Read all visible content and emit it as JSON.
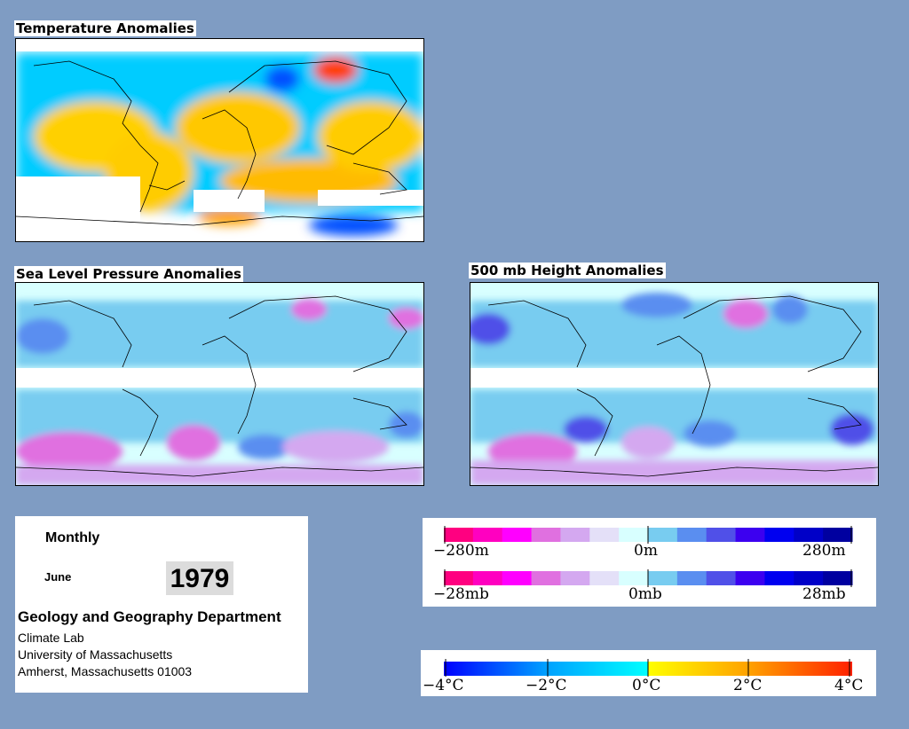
{
  "panels": {
    "temperature_title": "Temperature Anomalies",
    "slp_title": "Sea Level Pressure Anomalies",
    "height_title": "500 mb Height Anomalies"
  },
  "info": {
    "frequency": "Monthly",
    "month": "June",
    "year": "1979",
    "department": "Geology and Geography Department",
    "lab": "Climate Lab",
    "university": "University of Massachusetts",
    "address": "Amherst, Massachusetts 01003"
  },
  "legends": {
    "height": {
      "min": "−280m",
      "mid": "0m",
      "max": "280m"
    },
    "pressure": {
      "min": "−28mb",
      "mid": "0mb",
      "max": "28mb"
    },
    "temperature": {
      "t1": "−4°C",
      "t2": "−2°C",
      "t3": "0°C",
      "t4": "2°C",
      "t5": "4°C"
    }
  },
  "colors": {
    "background": "#7f9cc3",
    "anomaly_scale_hp": [
      "#ff0080",
      "#ff00c0",
      "#ff00ff",
      "#e070e0",
      "#d4a8f0",
      "#e4e0f8",
      "#d8ffff",
      "#78ccf0",
      "#5a8ef0",
      "#5050e8",
      "#3c00f0",
      "#0000f0",
      "#0000c8",
      "#0000a0"
    ],
    "temperature_scale": [
      "#0000ff",
      "#0050ff",
      "#00a0ff",
      "#00d0ff",
      "#00f0ff",
      "#ffff00",
      "#ffd000",
      "#ffa000",
      "#ff6000",
      "#ff2000"
    ]
  }
}
